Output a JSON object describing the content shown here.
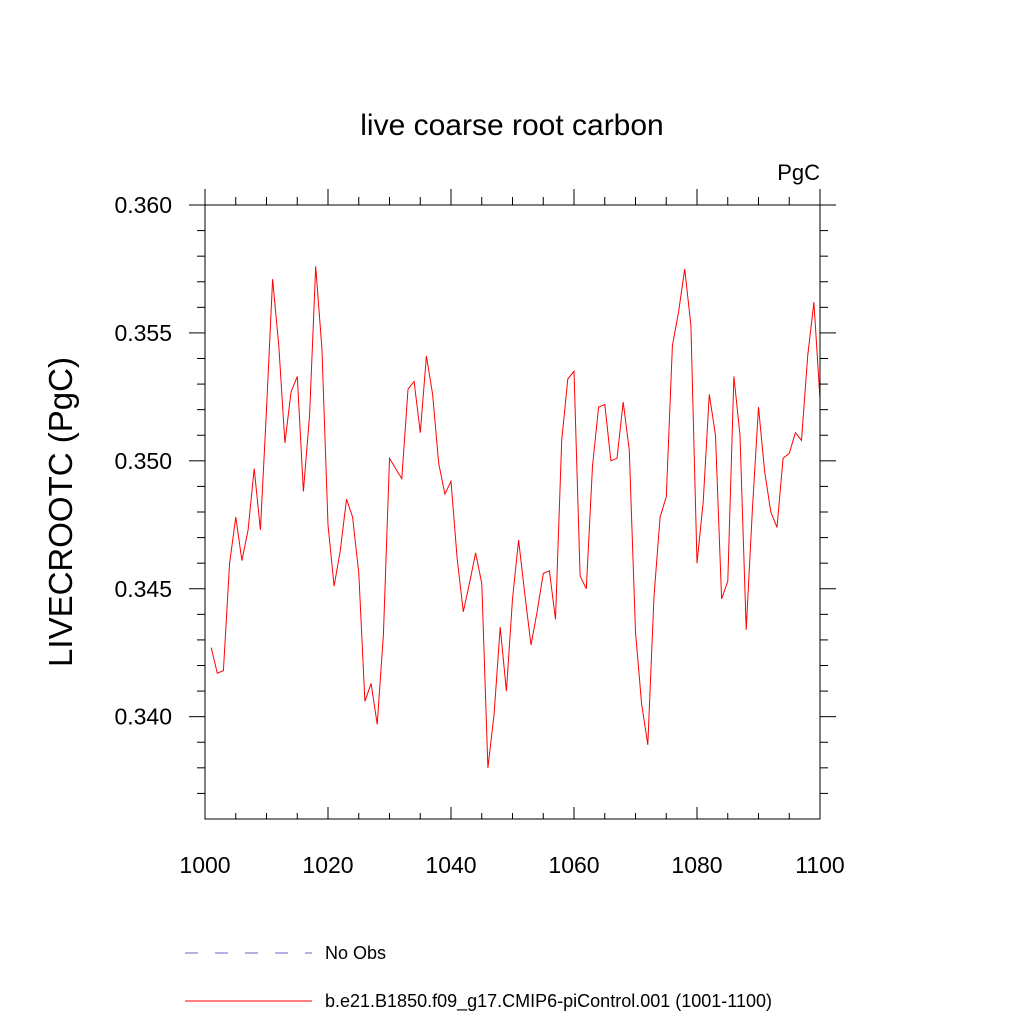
{
  "chart_data": {
    "type": "line",
    "title": "live coarse root carbon",
    "units": "PgC",
    "xlabel": "",
    "ylabel": "LIVECROOTC  (PgC)",
    "xlim": [
      1000,
      1100
    ],
    "ylim": [
      0.336,
      0.36
    ],
    "x_ticks": [
      1000,
      1020,
      1040,
      1060,
      1080,
      1100
    ],
    "x_tick_labels": [
      "1000",
      "1020",
      "1040",
      "1060",
      "1080",
      "1100"
    ],
    "y_ticks": [
      0.34,
      0.345,
      0.35,
      0.355,
      0.36
    ],
    "y_tick_labels": [
      "0.340",
      "0.345",
      "0.350",
      "0.355",
      "0.360"
    ],
    "grid": false,
    "legend": [
      {
        "label": "No Obs",
        "style": "dashed",
        "color": "#6666cc"
      },
      {
        "label": "b.e21.B1850.f09_g17.CMIP6-piControl.001 (1001-1100)",
        "style": "solid",
        "color": "#ff0000"
      }
    ],
    "series": [
      {
        "name": "b.e21.B1850.f09_g17.CMIP6-piControl.001 (1001-1100)",
        "color": "#ff0000",
        "x": [
          1001,
          1002,
          1003,
          1004,
          1005,
          1006,
          1007,
          1008,
          1009,
          1010,
          1011,
          1012,
          1013,
          1014,
          1015,
          1016,
          1017,
          1018,
          1019,
          1020,
          1021,
          1022,
          1023,
          1024,
          1025,
          1026,
          1027,
          1028,
          1029,
          1030,
          1031,
          1032,
          1033,
          1034,
          1035,
          1036,
          1037,
          1038,
          1039,
          1040,
          1041,
          1042,
          1043,
          1044,
          1045,
          1046,
          1047,
          1048,
          1049,
          1050,
          1051,
          1052,
          1053,
          1054,
          1055,
          1056,
          1057,
          1058,
          1059,
          1060,
          1061,
          1062,
          1063,
          1064,
          1065,
          1066,
          1067,
          1068,
          1069,
          1070,
          1071,
          1072,
          1073,
          1074,
          1075,
          1076,
          1077,
          1078,
          1079,
          1080,
          1081,
          1082,
          1083,
          1084,
          1085,
          1086,
          1087,
          1088,
          1089,
          1090,
          1091,
          1092,
          1093,
          1094,
          1095,
          1096,
          1097,
          1098,
          1099,
          1100
        ],
        "values": [
          0.3427,
          0.3417,
          0.3418,
          0.346,
          0.3478,
          0.3461,
          0.3473,
          0.3497,
          0.3473,
          0.352,
          0.3571,
          0.3545,
          0.3507,
          0.3527,
          0.3533,
          0.3488,
          0.3518,
          0.3576,
          0.3544,
          0.3475,
          0.3451,
          0.3465,
          0.3485,
          0.3478,
          0.3456,
          0.3406,
          0.3413,
          0.3397,
          0.3432,
          0.3501,
          0.3497,
          0.3493,
          0.3528,
          0.3531,
          0.3511,
          0.3541,
          0.3526,
          0.3499,
          0.3487,
          0.3492,
          0.3462,
          0.3441,
          0.3452,
          0.3464,
          0.3452,
          0.338,
          0.3401,
          0.3435,
          0.341,
          0.3446,
          0.3469,
          0.3448,
          0.3428,
          0.3441,
          0.3456,
          0.3457,
          0.3438,
          0.3508,
          0.3532,
          0.3535,
          0.3455,
          0.345,
          0.3498,
          0.3521,
          0.3522,
          0.35,
          0.3501,
          0.3523,
          0.3504,
          0.3433,
          0.3405,
          0.3389,
          0.3447,
          0.3478,
          0.3486,
          0.3545,
          0.3558,
          0.3575,
          0.3553,
          0.346,
          0.3484,
          0.3526,
          0.351,
          0.3446,
          0.3453,
          0.3533,
          0.351,
          0.3434,
          0.3481,
          0.3521,
          0.3496,
          0.348,
          0.3474,
          0.3501,
          0.3503,
          0.3511,
          0.3508,
          0.3541,
          0.3562,
          0.3524
        ]
      }
    ]
  }
}
